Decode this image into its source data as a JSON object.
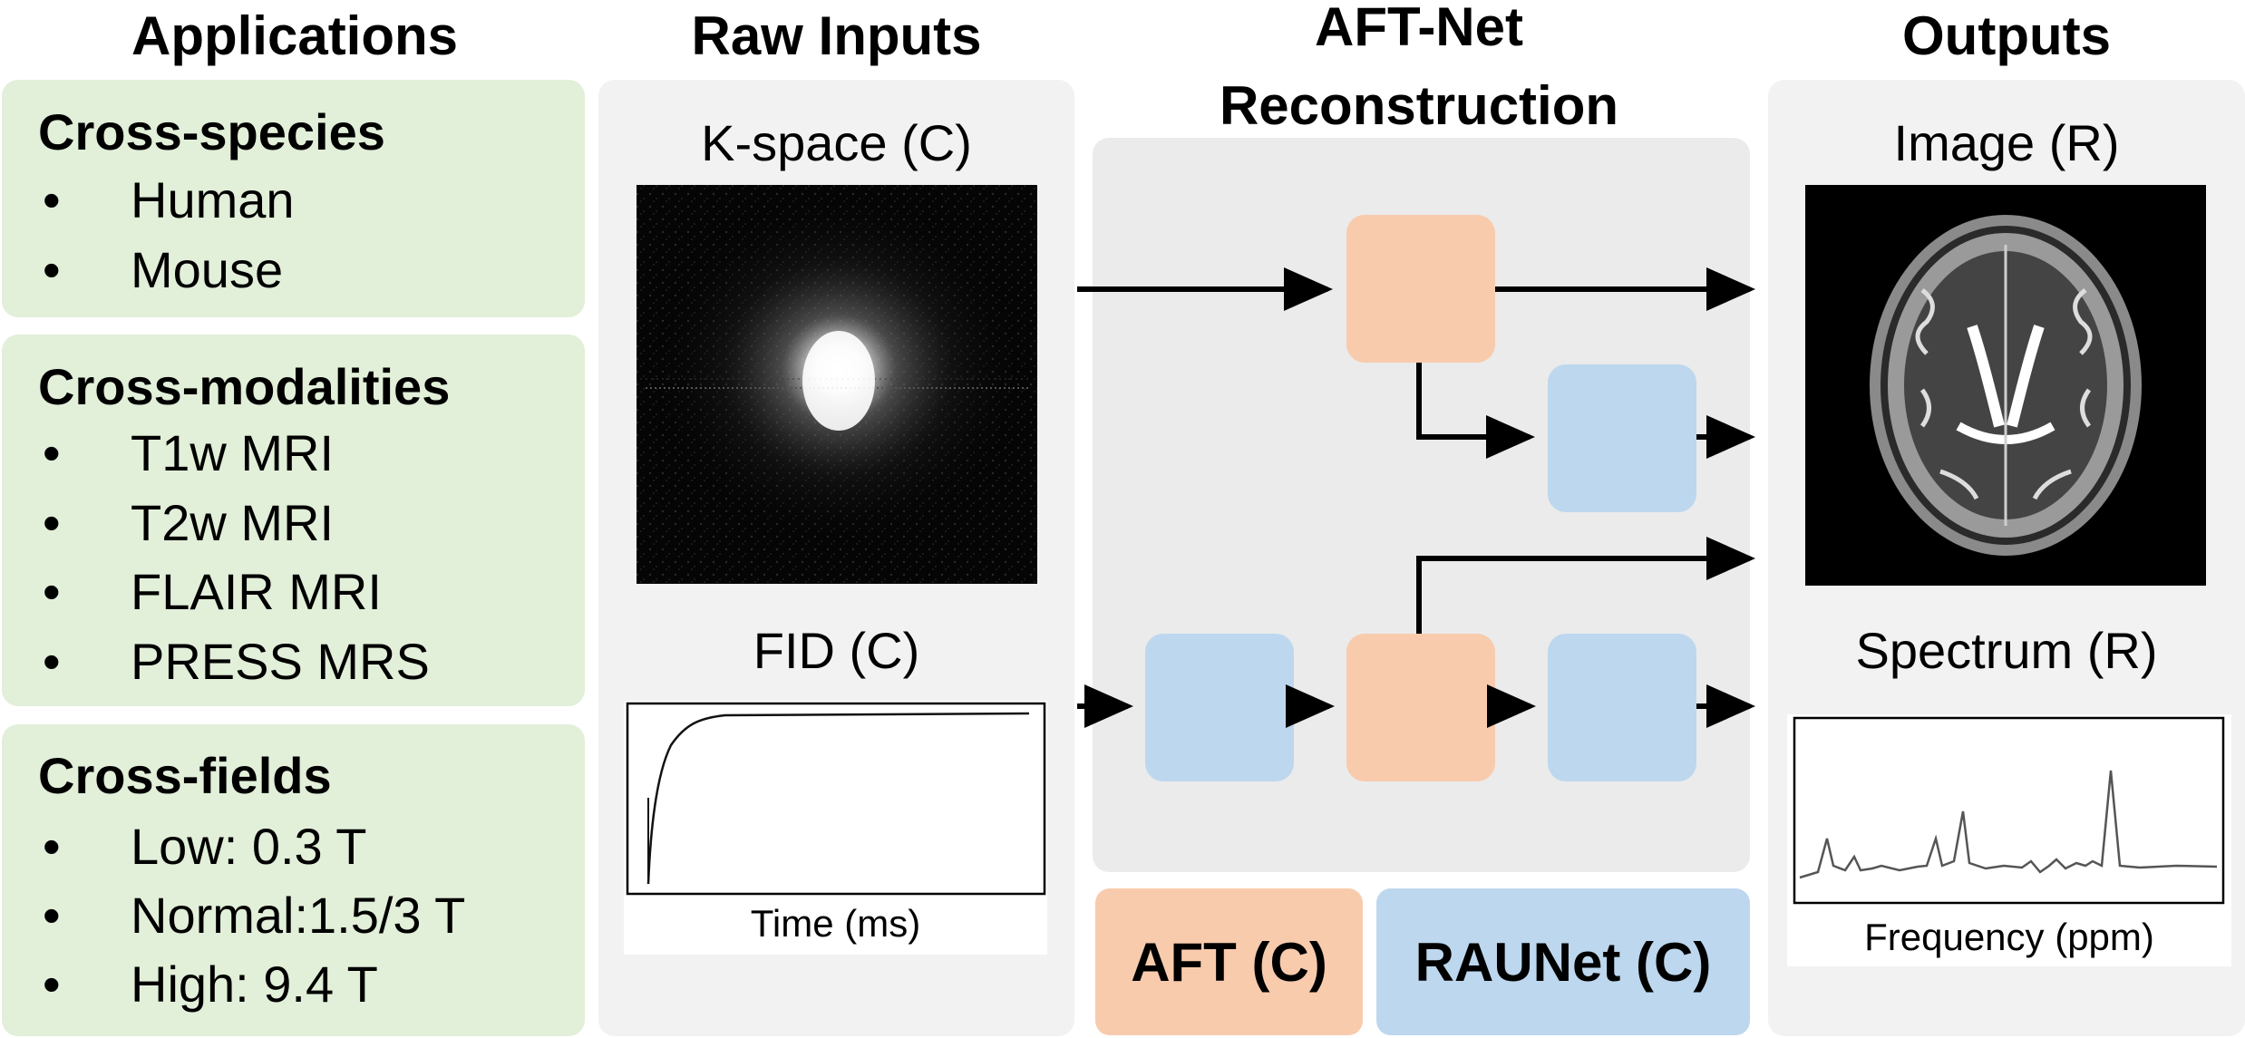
{
  "columns": {
    "applications": "Applications",
    "raw_inputs": "Raw Inputs",
    "reconstruction_line1": "AFT-Net",
    "reconstruction_line2": "Reconstruction",
    "outputs": "Outputs"
  },
  "applications": {
    "cross_species": {
      "title": "Cross-species",
      "items": [
        "Human",
        "Mouse"
      ]
    },
    "cross_modalities": {
      "title": "Cross-modalities",
      "items": [
        "T1w MRI",
        "T2w MRI",
        "FLAIR MRI",
        "PRESS MRS"
      ]
    },
    "cross_fields": {
      "title": "Cross-fields",
      "items": [
        "Low: 0.3 T",
        "Normal:1.5/3 T",
        "High: 9.4 T"
      ]
    },
    "bullet": "•"
  },
  "inputs": {
    "kspace_label": "K-space (C)",
    "fid_label": "FID (C)",
    "fid_xlabel": "Time (ms)"
  },
  "outputs": {
    "image_label": "Image (R)",
    "spectrum_label": "Spectrum (R)",
    "spectrum_xlabel": "Frequency (ppm)"
  },
  "legend": {
    "aft": "AFT (C)",
    "raunet": "RAUNet (C)"
  },
  "colors": {
    "aft": "#f8cbad",
    "raunet": "#bdd7ee",
    "applications_bg": "#e2efd9",
    "panel_bg": "#f2f2f2"
  }
}
